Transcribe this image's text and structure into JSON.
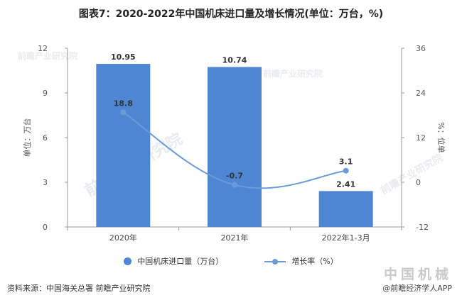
{
  "title": "图表7：2020-2022年中国机床进口量及增长情况(单位：万台，%)",
  "source": "资料来源：中国海关总署 前瞻产业研究院",
  "watermark_text": "前瞻产业研究院",
  "badge_text": "中国机械",
  "credit_text": "@前瞻经济学人APP",
  "colors": {
    "bar": "#4E86D3",
    "line": "#6A9BD8",
    "axis": "#999999"
  },
  "chart_data": {
    "type": "bar",
    "categories": [
      "2020年",
      "2021年",
      "2022年1-3月"
    ],
    "series": [
      {
        "name": "中国机床进口量（万台）",
        "type": "bar",
        "axis": "left",
        "values": [
          10.95,
          10.74,
          2.41
        ]
      },
      {
        "name": "增长率（%）",
        "type": "line",
        "axis": "right",
        "values": [
          18.8,
          -0.7,
          3.1
        ]
      }
    ],
    "ylabel_left": "单位：万台",
    "ylabel_right": "%：位单",
    "ylim_left": [
      0,
      12
    ],
    "yticks_left": [
      0,
      3,
      6,
      9,
      12
    ],
    "ylim_right": [
      -12,
      36
    ],
    "yticks_right": [
      -12,
      0,
      12,
      24,
      36
    ],
    "grid": false,
    "legend_position": "bottom"
  }
}
